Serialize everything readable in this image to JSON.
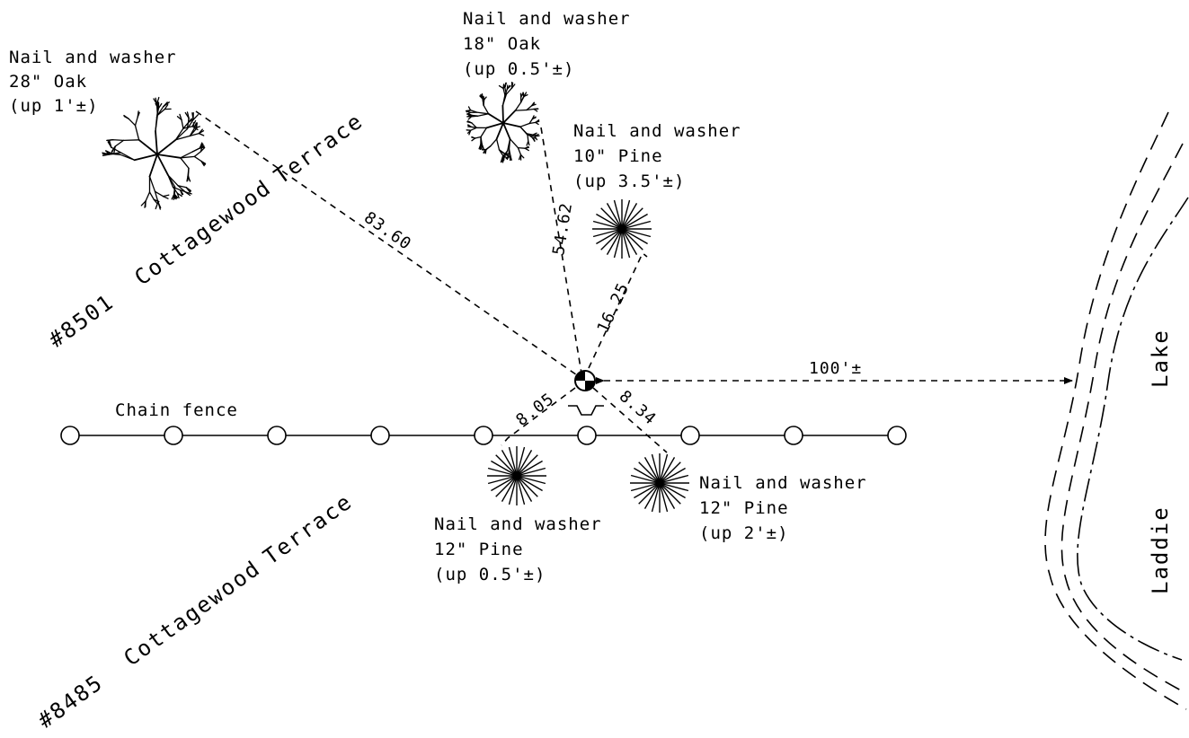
{
  "colors": {
    "ink": "#000000",
    "paper": "#ffffff"
  },
  "trees": {
    "oak28": {
      "l1": "Nail and washer",
      "l2": "28\" Oak",
      "l3": "(up 1'±)",
      "icon": "oak-tree-icon"
    },
    "oak18": {
      "l1": "Nail and washer",
      "l2": "18\" Oak",
      "l3": "(up 0.5'±)",
      "icon": "oak-tree-icon"
    },
    "pine10": {
      "l1": "Nail and washer",
      "l2": "10\" Pine",
      "l3": "(up 3.5'±)",
      "icon": "pine-tree-icon"
    },
    "pine12a": {
      "l1": "Nail and washer",
      "l2": "12\" Pine",
      "l3": "(up 0.5'±)",
      "icon": "pine-tree-icon"
    },
    "pine12b": {
      "l1": "Nail and washer",
      "l2": "12\" Pine",
      "l3": "(up 2'±)",
      "icon": "pine-tree-icon"
    }
  },
  "distances": {
    "oak28": "83.60",
    "oak18": "54.62",
    "pine10": "16.25",
    "pine12a": "8.05",
    "pine12b": "8.34",
    "lake": "100'±"
  },
  "streets": {
    "upper": {
      "number": "#8501",
      "name": "Cottagewood",
      "suffix": "Terrace"
    },
    "lower": {
      "number": "#8485",
      "name": "Cottagewood",
      "suffix": "Terrace"
    }
  },
  "fence": {
    "label": "Chain fence",
    "post_count": 9
  },
  "lake": {
    "word1": "Lake",
    "word2": "Laddie"
  }
}
